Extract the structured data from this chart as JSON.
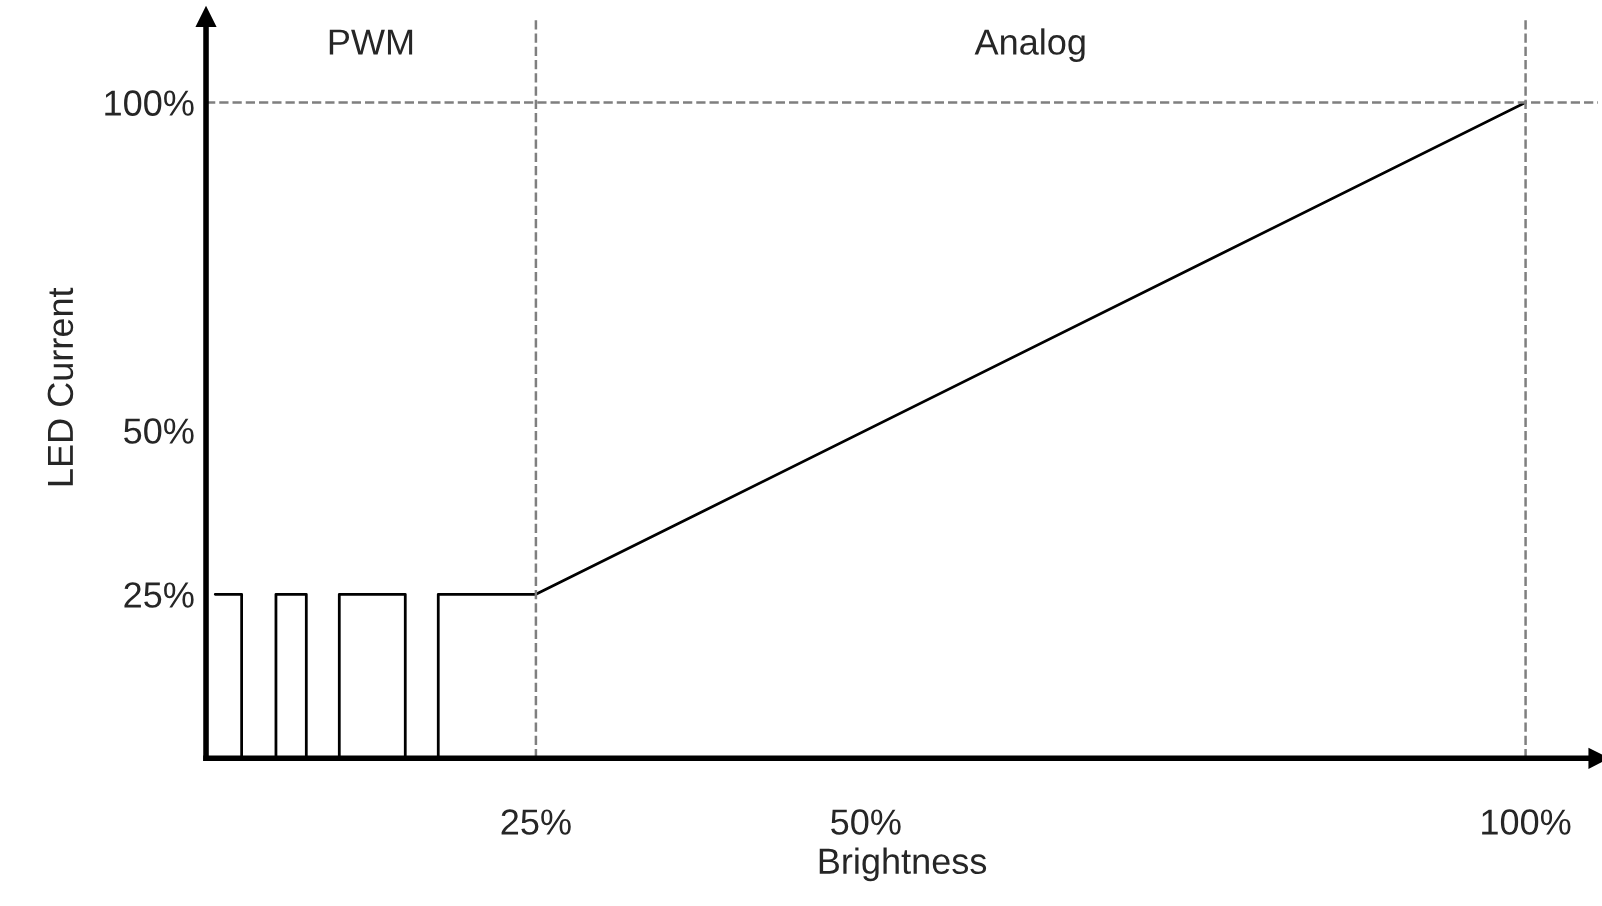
{
  "chart_data": {
    "type": "line",
    "xlabel": "Brightness",
    "ylabel": "LED Current",
    "x": [
      0.7,
      2.7,
      2.7,
      5.3,
      5.3,
      7.6,
      7.6,
      10.1,
      10.1,
      15.1,
      15.1,
      17.6,
      17.6,
      25,
      100
    ],
    "series": [
      {
        "color": "#000000",
        "values": [
          25,
          25,
          0,
          0,
          25,
          25,
          0,
          0,
          25,
          25,
          0,
          0,
          25,
          25,
          100
        ]
      }
    ],
    "xlim": [
      0,
      105.5
    ],
    "ylim": [
      0,
      113
    ],
    "xticks": [
      {
        "value": 25,
        "label": "25%"
      },
      {
        "value": 50,
        "label": "50%"
      },
      {
        "value": 100,
        "label": "100%"
      }
    ],
    "yticks": [
      {
        "value": 25,
        "label": "25%"
      },
      {
        "value": 50,
        "label": "50%"
      },
      {
        "value": 100,
        "label": "100%"
      }
    ],
    "ref_lines": [
      {
        "axis": "x",
        "value": 25,
        "color": "#7f7f7f",
        "line_style": "dashed"
      },
      {
        "axis": "x",
        "value": 100,
        "color": "#7f7f7f",
        "line_style": "dashed"
      },
      {
        "axis": "y",
        "value": 100,
        "color": "#7f7f7f",
        "line_style": "dashed"
      }
    ],
    "annotations": [
      "PWM",
      "Analog"
    ],
    "grid": false,
    "legend": false,
    "line_style": "solid",
    "marker": "none"
  }
}
